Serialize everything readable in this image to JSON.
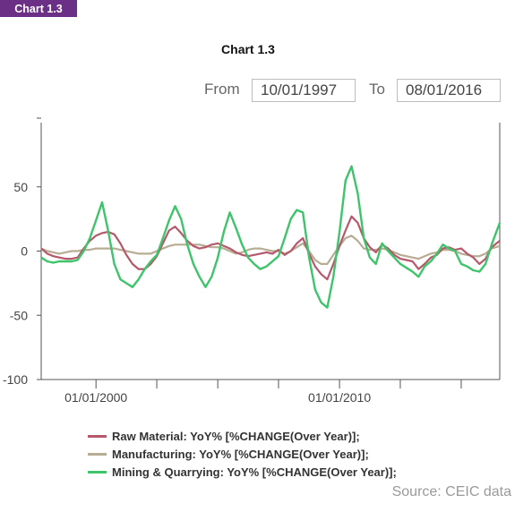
{
  "header": {
    "tag_label": "Chart 1.3"
  },
  "range": {
    "from_label": "From",
    "from_value": "10/01/1997",
    "to_label": "To",
    "to_value": "08/01/2016"
  },
  "footer": {
    "source": "Source: CEIC data"
  },
  "chart_data": {
    "type": "line",
    "title": "Chart 1.3",
    "xlabel": "",
    "ylabel": "",
    "xlim": [
      "1997-10-01",
      "2016-08-01"
    ],
    "ylim": [
      -100,
      100
    ],
    "yticks": [
      50,
      0,
      -50,
      -100
    ],
    "ytick_labels": [
      "50",
      "0",
      "-50",
      "-100"
    ],
    "xtick_labels": [
      {
        "date": "2000-01-01",
        "label": "01/01/2000"
      },
      {
        "date": "2010-01-01",
        "label": "01/01/2010"
      }
    ],
    "minor_xticks": [
      "2002-07-01",
      "2005-01-01",
      "2007-07-01",
      "2012-07-01",
      "2015-01-01"
    ],
    "grid": false,
    "legend_position": "bottom",
    "x": [
      "1997-10",
      "1998-01",
      "1998-04",
      "1998-07",
      "1998-10",
      "1999-01",
      "1999-04",
      "1999-07",
      "1999-10",
      "2000-01",
      "2000-04",
      "2000-07",
      "2000-10",
      "2001-01",
      "2001-04",
      "2001-07",
      "2001-10",
      "2002-01",
      "2002-04",
      "2002-07",
      "2002-10",
      "2003-01",
      "2003-04",
      "2003-07",
      "2003-10",
      "2004-01",
      "2004-04",
      "2004-07",
      "2004-10",
      "2005-01",
      "2005-04",
      "2005-07",
      "2005-10",
      "2006-01",
      "2006-04",
      "2006-07",
      "2006-10",
      "2007-01",
      "2007-04",
      "2007-07",
      "2007-10",
      "2008-01",
      "2008-04",
      "2008-07",
      "2008-10",
      "2009-01",
      "2009-04",
      "2009-07",
      "2009-10",
      "2010-01",
      "2010-04",
      "2010-07",
      "2010-10",
      "2011-01",
      "2011-04",
      "2011-07",
      "2011-10",
      "2012-01",
      "2012-04",
      "2012-07",
      "2012-10",
      "2013-01",
      "2013-04",
      "2013-07",
      "2013-10",
      "2014-01",
      "2014-04",
      "2014-07",
      "2014-10",
      "2015-01",
      "2015-04",
      "2015-07",
      "2015-10",
      "2016-01",
      "2016-04",
      "2016-08"
    ],
    "series": [
      {
        "name": "Raw Material: YoY% [%CHANGE(Over Year)];",
        "color": "#b5586b",
        "values": [
          2,
          -2,
          -4,
          -5,
          -6,
          -6,
          -5,
          2,
          8,
          12,
          14,
          15,
          13,
          6,
          -3,
          -10,
          -14,
          -14,
          -10,
          -4,
          6,
          16,
          19,
          14,
          8,
          4,
          2,
          3,
          5,
          6,
          4,
          2,
          -1,
          -3,
          -4,
          -3,
          -2,
          -1,
          -2,
          1,
          -3,
          0,
          6,
          10,
          -2,
          -12,
          -18,
          -22,
          -10,
          4,
          16,
          27,
          22,
          10,
          3,
          -1,
          5,
          2,
          -3,
          -6,
          -7,
          -8,
          -14,
          -10,
          -5,
          -3,
          2,
          3,
          1,
          2,
          -2,
          -5,
          -10,
          -6,
          3,
          8
        ]
      },
      {
        "name": "Manufacturing: YoY% [%CHANGE(Over Year)];",
        "color": "#b8ac94",
        "values": [
          2,
          0,
          -1,
          -2,
          -1,
          0,
          0,
          1,
          1,
          2,
          2,
          2,
          2,
          1,
          0,
          -1,
          -2,
          -2,
          -2,
          0,
          2,
          4,
          5,
          5,
          5,
          5,
          5,
          4,
          3,
          3,
          2,
          0,
          -2,
          -1,
          1,
          2,
          2,
          1,
          0,
          0,
          -2,
          0,
          3,
          6,
          0,
          -7,
          -10,
          -10,
          -3,
          4,
          10,
          12,
          8,
          2,
          1,
          1,
          2,
          1,
          -1,
          -3,
          -4,
          -5,
          -6,
          -4,
          -2,
          -1,
          1,
          1,
          0,
          -2,
          -3,
          -4,
          -4,
          -2,
          2,
          4
        ]
      },
      {
        "name": "Mining & Quarrying: YoY% [%CHANGE(Over Year)];",
        "color": "#3ec46a",
        "values": [
          -5,
          -8,
          -9,
          -8,
          -8,
          -8,
          -7,
          0,
          10,
          24,
          38,
          16,
          -10,
          -22,
          -25,
          -28,
          -22,
          -14,
          -8,
          -3,
          10,
          24,
          35,
          25,
          5,
          -10,
          -20,
          -28,
          -20,
          -5,
          15,
          30,
          18,
          5,
          -5,
          -10,
          -14,
          -12,
          -8,
          -4,
          10,
          25,
          32,
          30,
          -5,
          -30,
          -40,
          -44,
          -20,
          15,
          55,
          66,
          45,
          10,
          -5,
          -10,
          6,
          0,
          -5,
          -10,
          -13,
          -16,
          -20,
          -12,
          -8,
          -2,
          5,
          2,
          0,
          -10,
          -12,
          -15,
          -16,
          -10,
          5,
          22
        ]
      }
    ]
  }
}
